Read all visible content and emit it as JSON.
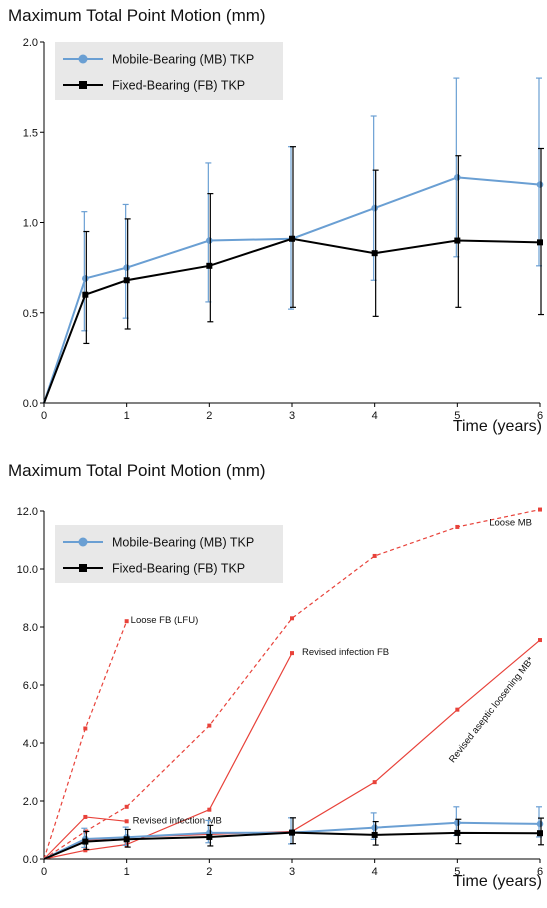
{
  "chart_data": [
    {
      "type": "line",
      "title": "Maximum Total Point Motion (mm)",
      "xlabel": "Time (years)",
      "ylabel": "",
      "xlim": [
        0,
        6
      ],
      "ylim": [
        0,
        2.0
      ],
      "x_ticks": [
        "0",
        "1",
        "2",
        "3",
        "4",
        "5",
        "6"
      ],
      "y_ticks": [
        "0.0",
        "0.5",
        "1.0",
        "1.5",
        "2.0"
      ],
      "grid": false,
      "legend_position": "top-left",
      "series": [
        {
          "name": "Mobile-Bearing (MB) TKP",
          "color": "#6a9fd3",
          "marker": "circle",
          "x": [
            0,
            0.5,
            1,
            2,
            3,
            4,
            5,
            6
          ],
          "y": [
            0,
            0.69,
            0.75,
            0.9,
            0.91,
            1.08,
            1.25,
            1.21
          ],
          "err_low": [
            null,
            0.4,
            0.47,
            0.56,
            0.52,
            0.68,
            0.81,
            0.76
          ],
          "err_high": [
            null,
            1.06,
            1.1,
            1.33,
            1.42,
            1.59,
            1.8,
            1.8
          ]
        },
        {
          "name": "Fixed-Bearing (FB) TKP",
          "color": "#000000",
          "marker": "square",
          "x": [
            0,
            0.5,
            1,
            2,
            3,
            4,
            5,
            6
          ],
          "y": [
            0,
            0.6,
            0.68,
            0.76,
            0.91,
            0.83,
            0.9,
            0.89
          ],
          "err_low": [
            null,
            0.33,
            0.41,
            0.45,
            0.53,
            0.48,
            0.53,
            0.49
          ],
          "err_high": [
            null,
            0.95,
            1.02,
            1.16,
            1.42,
            1.29,
            1.37,
            1.41
          ]
        }
      ]
    },
    {
      "type": "line",
      "title": "Maximum Total Point Motion (mm)",
      "xlabel": "Time (years)",
      "ylabel": "",
      "xlim": [
        0,
        6
      ],
      "ylim": [
        0,
        12.0
      ],
      "x_ticks": [
        "0",
        "1",
        "2",
        "3",
        "4",
        "5",
        "6"
      ],
      "y_ticks": [
        "0.0",
        "2.0",
        "4.0",
        "6.0",
        "8.0",
        "10.0",
        "12.0"
      ],
      "grid": false,
      "legend_position": "top-left",
      "series": [
        {
          "name": "Mobile-Bearing (MB) TKP",
          "color": "#6a9fd3",
          "marker": "circle",
          "x": [
            0,
            0.5,
            1,
            2,
            3,
            4,
            5,
            6
          ],
          "y": [
            0,
            0.69,
            0.75,
            0.9,
            0.91,
            1.08,
            1.25,
            1.21
          ],
          "err_low": [
            null,
            0.4,
            0.47,
            0.56,
            0.52,
            0.68,
            0.81,
            0.76
          ],
          "err_high": [
            null,
            1.06,
            1.1,
            1.33,
            1.42,
            1.59,
            1.8,
            1.8
          ]
        },
        {
          "name": "Fixed-Bearing (FB) TKP",
          "color": "#000000",
          "marker": "square",
          "x": [
            0,
            0.5,
            1,
            2,
            3,
            4,
            5,
            6
          ],
          "y": [
            0,
            0.6,
            0.68,
            0.76,
            0.91,
            0.83,
            0.9,
            0.89
          ],
          "err_low": [
            null,
            0.33,
            0.41,
            0.45,
            0.53,
            0.48,
            0.53,
            0.49
          ],
          "err_high": [
            null,
            0.95,
            1.02,
            1.16,
            1.42,
            1.29,
            1.37,
            1.41
          ]
        }
      ],
      "outliers": [
        {
          "label": "Loose FB (LFU)",
          "dashed": true,
          "color": "#e8423a",
          "x": [
            0,
            0.5,
            1
          ],
          "y": [
            0,
            4.5,
            8.2
          ]
        },
        {
          "label": "Loose MB",
          "dashed": true,
          "color": "#e8423a",
          "x": [
            0,
            0.5,
            1,
            2,
            3,
            4,
            5,
            6
          ],
          "y": [
            0,
            0.95,
            1.8,
            4.6,
            8.3,
            10.45,
            11.45,
            12.05
          ]
        },
        {
          "label": "Revised infection FB",
          "dashed": false,
          "color": "#e8423a",
          "x": [
            0,
            0.5,
            1,
            2,
            3
          ],
          "y": [
            0,
            0.3,
            0.5,
            1.7,
            7.1
          ]
        },
        {
          "label": "Revised infection MB",
          "dashed": false,
          "color": "#e8423a",
          "x": [
            0,
            0.5,
            1
          ],
          "y": [
            0,
            1.45,
            1.3
          ]
        },
        {
          "label": "Revised aseptic loosening MB*",
          "dashed": false,
          "color": "#e8423a",
          "x": [
            0,
            0.5,
            1,
            2,
            3,
            4,
            5,
            6
          ],
          "y": [
            0,
            0.65,
            0.75,
            0.85,
            0.95,
            2.65,
            5.15,
            7.55
          ]
        }
      ]
    }
  ]
}
